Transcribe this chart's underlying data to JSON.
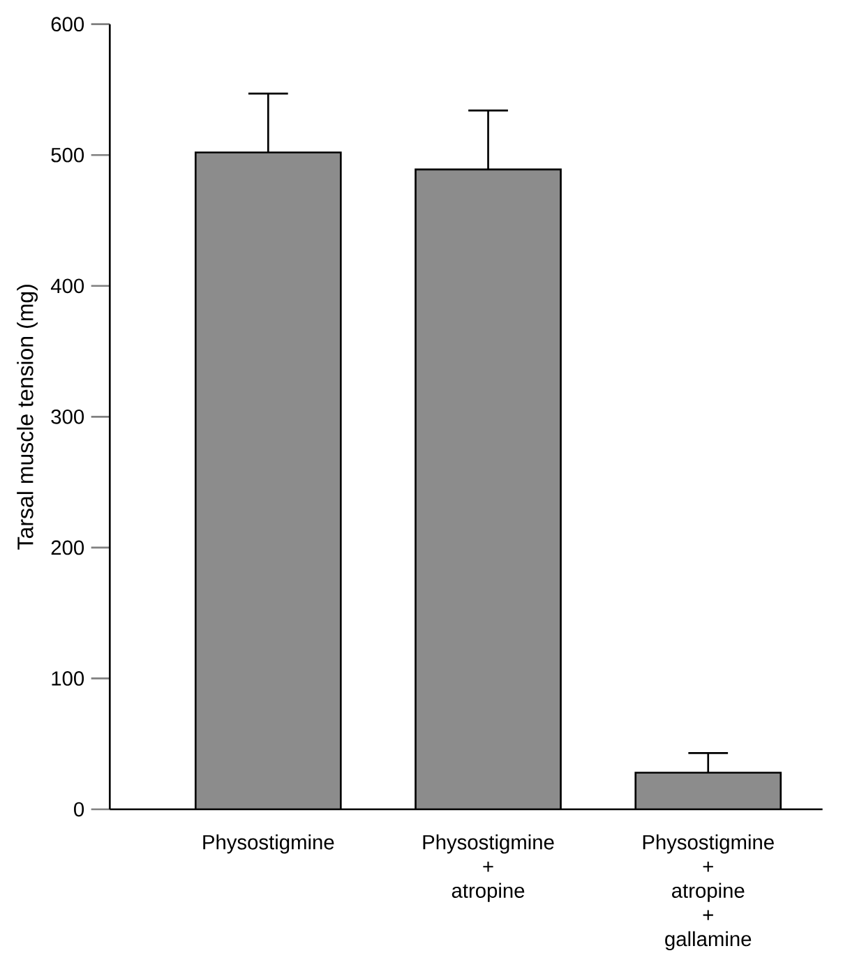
{
  "chart_data": {
    "type": "bar",
    "ylabel": "Tarsal muscle tension (mg)",
    "categories": [
      "Physostigmine",
      "Physostigmine + atropine",
      "Physostigmine + atropine + gallamine"
    ],
    "values": [
      502,
      489,
      28
    ],
    "errors": [
      [
        502,
        547
      ],
      [
        489,
        534
      ],
      [
        28,
        43
      ]
    ],
    "color": "#8c8c8c",
    "ylim": [
      0,
      600
    ],
    "yticks": [
      0,
      100,
      200,
      300,
      400,
      500,
      600
    ]
  }
}
